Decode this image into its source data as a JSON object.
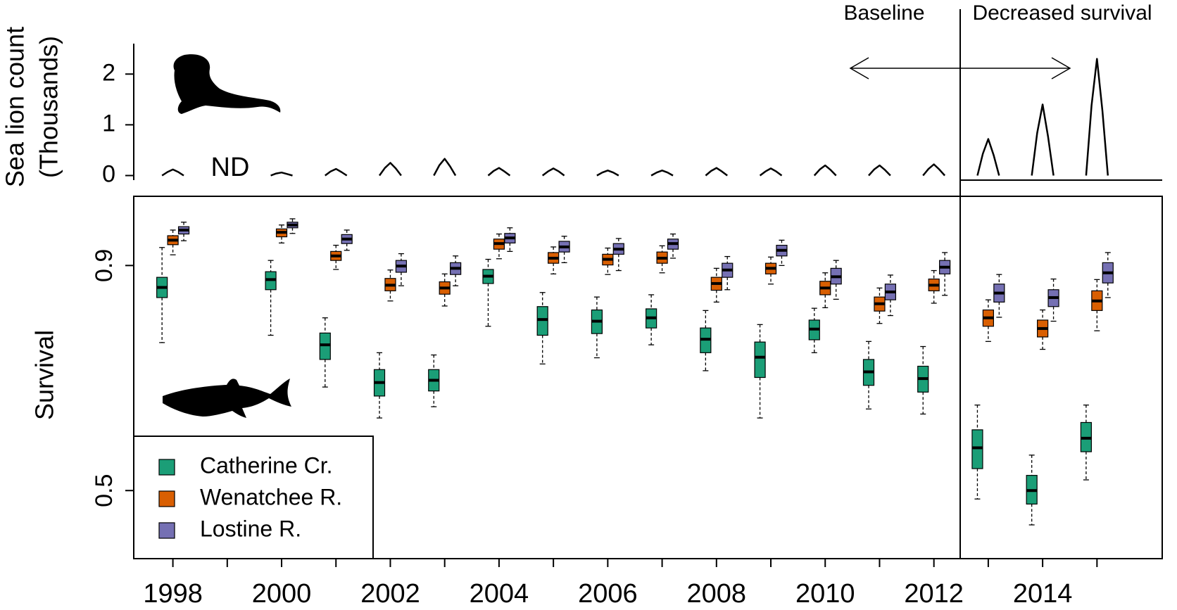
{
  "chart_data": [
    {
      "type": "line",
      "ylabel": [
        "Sea lion count",
        "(Thousands)"
      ],
      "annotations": [
        "ND",
        "Baseline",
        "Decreased survival"
      ],
      "color": "#000000",
      "xlim": [
        1997.28,
        2016.2
      ],
      "ylim": [
        -0.09,
        2.6
      ],
      "yticks": [
        0,
        1,
        2
      ],
      "x": [
        1997.8,
        1997.9,
        1998,
        1998.1,
        1998.2,
        1998.5,
        1999.8,
        1999.9,
        2000,
        2000.1,
        2000.2,
        2000.5,
        2000.8,
        2000.9,
        2001,
        2001.1,
        2001.2,
        2001.5,
        2001.8,
        2001.9,
        2002,
        2002.1,
        2002.2,
        2002.5,
        2002.8,
        2002.9,
        2003,
        2003.1,
        2003.2,
        2003.5,
        2003.8,
        2003.9,
        2004,
        2004.1,
        2004.2,
        2004.5,
        2004.8,
        2004.9,
        2005,
        2005.1,
        2005.2,
        2005.5,
        2005.8,
        2005.9,
        2006,
        2006.1,
        2006.2,
        2006.5,
        2006.8,
        2006.9,
        2007,
        2007.1,
        2007.2,
        2007.5,
        2007.8,
        2007.9,
        2008,
        2008.1,
        2008.2,
        2008.5,
        2008.8,
        2008.9,
        2009,
        2009.1,
        2009.2,
        2009.5,
        2009.8,
        2009.9,
        2010,
        2010.1,
        2010.2,
        2010.5,
        2010.8,
        2010.9,
        2011,
        2011.1,
        2011.2,
        2011.5,
        2011.8,
        2011.9,
        2012,
        2012.1,
        2012.2,
        2012.5,
        2012.8,
        2012.9,
        2013,
        2013.1,
        2013.2,
        2013.5,
        2013.8,
        2013.9,
        2014,
        2014.1,
        2014.2,
        2014.5,
        2014.8,
        2014.9,
        2015,
        2015.1,
        2015.2
      ],
      "values": [
        0,
        0.07,
        0.12,
        0.07,
        0,
        null,
        0,
        0.04,
        0.06,
        0.03,
        0,
        null,
        0,
        0.08,
        0.13,
        0.07,
        0,
        null,
        0,
        0.15,
        0.25,
        0.14,
        0,
        null,
        0,
        0.2,
        0.33,
        0.18,
        0,
        null,
        0,
        0.09,
        0.15,
        0.08,
        0,
        null,
        0,
        0.08,
        0.14,
        0.08,
        0,
        null,
        0,
        0.06,
        0.1,
        0.06,
        0,
        null,
        0,
        0.06,
        0.1,
        0.06,
        0,
        null,
        0,
        0.09,
        0.15,
        0.08,
        0,
        null,
        0,
        0.08,
        0.14,
        0.08,
        0,
        null,
        0,
        0.12,
        0.2,
        0.11,
        0,
        null,
        0,
        0.12,
        0.2,
        0.11,
        0,
        null,
        0,
        0.13,
        0.22,
        0.12,
        0,
        null,
        0,
        0.43,
        0.72,
        0.4,
        0,
        null,
        0,
        0.84,
        1.4,
        0.77,
        0,
        null,
        0,
        1.38,
        2.3,
        1.27,
        0
      ]
    },
    {
      "type": "box",
      "ylabel": "Survival",
      "legend": "bottom-left",
      "xlim": [
        1997.28,
        2016.2
      ],
      "ylim": [
        0.379,
        1.023
      ],
      "yticks": [
        0.5,
        0.9
      ],
      "xticks": [
        1998,
        2000,
        2002,
        2004,
        2006,
        2008,
        2010,
        2012,
        2014
      ],
      "xminorticks": [
        1999,
        2001,
        2003,
        2005,
        2007,
        2009,
        2011,
        2013,
        2015
      ],
      "x": [
        1998,
        2000,
        2001,
        2002,
        2003,
        2004,
        2005,
        2006,
        2007,
        2008,
        2009,
        2010,
        2011,
        2012,
        2013,
        2014,
        2015
      ],
      "series": [
        {
          "name": "Catherine Cr.",
          "color": "#1b9e77",
          "values": [
            [
              0.763,
              0.843,
              0.861,
              0.879,
              0.932
            ],
            [
              0.776,
              0.857,
              0.875,
              0.889,
              0.909
            ],
            [
              0.684,
              0.733,
              0.759,
              0.78,
              0.807
            ],
            [
              0.629,
              0.668,
              0.692,
              0.715,
              0.745
            ],
            [
              0.649,
              0.677,
              0.696,
              0.715,
              0.741
            ],
            [
              0.792,
              0.868,
              0.881,
              0.893,
              0.911
            ],
            [
              0.725,
              0.776,
              0.804,
              0.827,
              0.852
            ],
            [
              0.736,
              0.779,
              0.801,
              0.821,
              0.844
            ],
            [
              0.759,
              0.789,
              0.807,
              0.823,
              0.848
            ],
            [
              0.713,
              0.745,
              0.769,
              0.789,
              0.82
            ],
            [
              0.629,
              0.701,
              0.737,
              0.764,
              0.795
            ],
            [
              0.745,
              0.768,
              0.787,
              0.803,
              0.824
            ],
            [
              0.645,
              0.687,
              0.711,
              0.733,
              0.765
            ],
            [
              0.636,
              0.675,
              0.699,
              0.721,
              0.756
            ],
            [
              0.485,
              0.539,
              0.576,
              0.608,
              0.652
            ],
            [
              0.439,
              0.476,
              0.5,
              0.527,
              0.563
            ],
            [
              0.519,
              0.569,
              0.593,
              0.621,
              0.652
            ]
          ]
        },
        {
          "name": "Wenatchee R.",
          "color": "#d95f02",
          "values": [
            [
              0.919,
              0.937,
              0.945,
              0.953,
              0.963
            ],
            [
              0.94,
              0.951,
              0.959,
              0.965,
              0.972
            ],
            [
              0.893,
              0.909,
              0.917,
              0.925,
              0.936
            ],
            [
              0.837,
              0.855,
              0.865,
              0.877,
              0.892
            ],
            [
              0.828,
              0.849,
              0.86,
              0.871,
              0.885
            ],
            [
              0.912,
              0.929,
              0.939,
              0.947,
              0.956
            ],
            [
              0.885,
              0.904,
              0.913,
              0.923,
              0.933
            ],
            [
              0.884,
              0.901,
              0.911,
              0.92,
              0.931
            ],
            [
              0.887,
              0.904,
              0.913,
              0.924,
              0.935
            ],
            [
              0.835,
              0.856,
              0.868,
              0.879,
              0.895
            ],
            [
              0.867,
              0.885,
              0.895,
              0.904,
              0.915
            ],
            [
              0.825,
              0.848,
              0.86,
              0.872,
              0.887
            ],
            [
              0.797,
              0.819,
              0.832,
              0.844,
              0.86
            ],
            [
              0.833,
              0.855,
              0.865,
              0.876,
              0.891
            ],
            [
              0.765,
              0.792,
              0.807,
              0.821,
              0.839
            ],
            [
              0.751,
              0.773,
              0.788,
              0.803,
              0.821
            ],
            [
              0.784,
              0.82,
              0.837,
              0.855,
              0.875
            ]
          ]
        },
        {
          "name": "Lostine R.",
          "color": "#7570b3",
          "values": [
            [
              0.944,
              0.956,
              0.963,
              0.969,
              0.977
            ],
            [
              0.957,
              0.967,
              0.972,
              0.977,
              0.983
            ],
            [
              0.927,
              0.939,
              0.947,
              0.955,
              0.963
            ],
            [
              0.864,
              0.888,
              0.899,
              0.909,
              0.921
            ],
            [
              0.864,
              0.884,
              0.895,
              0.905,
              0.917
            ],
            [
              0.925,
              0.94,
              0.949,
              0.957,
              0.967
            ],
            [
              0.905,
              0.924,
              0.933,
              0.943,
              0.952
            ],
            [
              0.891,
              0.92,
              0.929,
              0.939,
              0.948
            ],
            [
              0.913,
              0.929,
              0.939,
              0.947,
              0.956
            ],
            [
              0.857,
              0.879,
              0.892,
              0.904,
              0.916
            ],
            [
              0.9,
              0.917,
              0.927,
              0.936,
              0.945
            ],
            [
              0.84,
              0.867,
              0.88,
              0.895,
              0.909
            ],
            [
              0.811,
              0.839,
              0.853,
              0.867,
              0.883
            ],
            [
              0.847,
              0.885,
              0.897,
              0.909,
              0.923
            ],
            [
              0.808,
              0.835,
              0.851,
              0.867,
              0.884
            ],
            [
              0.801,
              0.827,
              0.843,
              0.857,
              0.876
            ],
            [
              0.843,
              0.869,
              0.887,
              0.905,
              0.923
            ]
          ]
        }
      ]
    }
  ]
}
